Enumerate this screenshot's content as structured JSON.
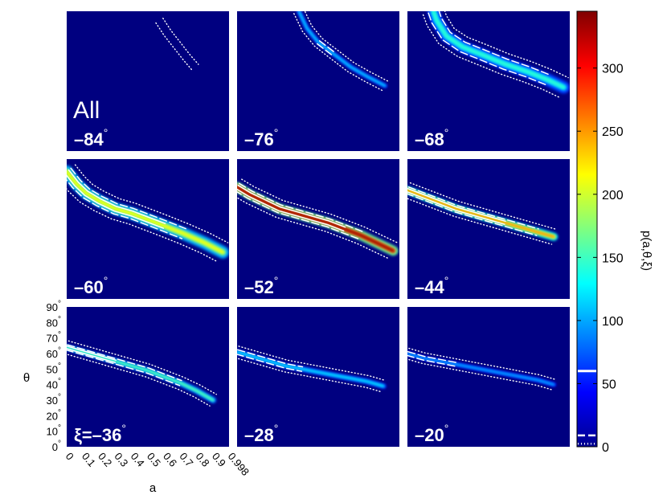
{
  "chart_data": {
    "type": "heatmap",
    "title": "",
    "overlay_label": "All",
    "xlabel": "a",
    "ylabel": "θ",
    "colorbar_label": "p(a,θ,ξ)",
    "x_ticks": [
      "0",
      "0.1",
      "0.2",
      "0.3",
      "0.4",
      "0.5",
      "0.6",
      "0.7",
      "0.8",
      "0.9",
      "0.998"
    ],
    "xlim": [
      0,
      0.998
    ],
    "y_ticks": [
      "0°",
      "10°",
      "20°",
      "30°",
      "40°",
      "50°",
      "60°",
      "70°",
      "80°",
      "90°"
    ],
    "ylim": [
      0,
      90
    ],
    "colorbar": {
      "ticks": [
        "0",
        "50",
        "100",
        "150",
        "200",
        "250",
        "300"
      ],
      "range": [
        0,
        345
      ],
      "contour_levels": [
        {
          "style": "dotted",
          "value": 0.5
        },
        {
          "style": "dashed",
          "value": 9
        },
        {
          "style": "solid",
          "value": 60
        }
      ]
    },
    "panels": [
      {
        "label": "–84°",
        "xi": -84,
        "peak": 0,
        "ridge": [
          [
            0.57,
            84
          ],
          [
            0.62,
            76
          ],
          [
            0.68,
            68
          ],
          [
            0.74,
            60
          ],
          [
            0.79,
            54
          ]
        ],
        "outer_width": 1.5,
        "dashed": [],
        "solid": []
      },
      {
        "label": "–76°",
        "xi": -76,
        "peak": 30,
        "ridge": [
          [
            0.38,
            90
          ],
          [
            0.43,
            79
          ],
          [
            0.5,
            70
          ],
          [
            0.6,
            62
          ],
          [
            0.7,
            54
          ],
          [
            0.8,
            48
          ],
          [
            0.91,
            42
          ]
        ],
        "outer_width": 2.5,
        "dashed": [
          0.46,
          0.62
        ],
        "solid": []
      },
      {
        "label": "–68°",
        "xi": -68,
        "peak": 60,
        "ridge": [
          [
            0.16,
            90
          ],
          [
            0.18,
            84
          ],
          [
            0.24,
            74
          ],
          [
            0.34,
            67
          ],
          [
            0.46,
            62
          ],
          [
            0.6,
            56
          ],
          [
            0.74,
            51
          ],
          [
            0.86,
            46
          ],
          [
            0.96,
            41
          ]
        ],
        "outer_width": 7,
        "dashed": [
          0.1,
          0.86
        ],
        "solid": []
      },
      {
        "label": "–60°",
        "xi": -60,
        "peak": 160,
        "ridge": [
          [
            0.0,
            82
          ],
          [
            0.06,
            74
          ],
          [
            0.12,
            68
          ],
          [
            0.2,
            63
          ],
          [
            0.3,
            58
          ],
          [
            0.4,
            55
          ],
          [
            0.5,
            51
          ],
          [
            0.6,
            47
          ],
          [
            0.72,
            42
          ],
          [
            0.85,
            36
          ],
          [
            0.96,
            30
          ]
        ],
        "outer_width": 7,
        "dashed": [
          0.0,
          0.74
        ],
        "solid": [
          0.0,
          0.64
        ]
      },
      {
        "label": "–52°",
        "xi": -52,
        "peak": 345,
        "ridge": [
          [
            0.0,
            72
          ],
          [
            0.08,
            67
          ],
          [
            0.16,
            63
          ],
          [
            0.26,
            58
          ],
          [
            0.36,
            55
          ],
          [
            0.46,
            52
          ],
          [
            0.56,
            49
          ],
          [
            0.66,
            45
          ],
          [
            0.76,
            41
          ],
          [
            0.86,
            36
          ],
          [
            0.96,
            31
          ]
        ],
        "outer_width": 5.5,
        "dashed": [
          0.0,
          0.82
        ],
        "solid": [
          0.0,
          0.66
        ]
      },
      {
        "label": "–44°",
        "xi": -44,
        "peak": 230,
        "ridge": [
          [
            0.0,
            70
          ],
          [
            0.1,
            66
          ],
          [
            0.2,
            62
          ],
          [
            0.3,
            58
          ],
          [
            0.4,
            55
          ],
          [
            0.5,
            52
          ],
          [
            0.6,
            49
          ],
          [
            0.7,
            46
          ],
          [
            0.8,
            43
          ],
          [
            0.9,
            40
          ]
        ],
        "outer_width": 4.5,
        "dashed": [
          0.0,
          0.84
        ],
        "solid": [
          0.0,
          0.6
        ]
      },
      {
        "label": "ξ=–36°",
        "xi": -36,
        "peak": 90,
        "ridge": [
          [
            0.0,
            64
          ],
          [
            0.1,
            61
          ],
          [
            0.2,
            58
          ],
          [
            0.3,
            55
          ],
          [
            0.4,
            52
          ],
          [
            0.5,
            49
          ],
          [
            0.6,
            45
          ],
          [
            0.7,
            41
          ],
          [
            0.8,
            36
          ],
          [
            0.9,
            30
          ]
        ],
        "outer_width": 3.5,
        "dashed": [
          0.0,
          0.7
        ],
        "solid": [
          0.0,
          0.36
        ]
      },
      {
        "label": "–28°",
        "xi": -28,
        "peak": 40,
        "ridge": [
          [
            0.0,
            61
          ],
          [
            0.1,
            58
          ],
          [
            0.2,
            55
          ],
          [
            0.3,
            52
          ],
          [
            0.4,
            50
          ],
          [
            0.5,
            48
          ],
          [
            0.6,
            46
          ],
          [
            0.7,
            44
          ],
          [
            0.8,
            42
          ],
          [
            0.9,
            39
          ]
        ],
        "outer_width": 3,
        "dashed": [
          0.0,
          0.48
        ],
        "solid": []
      },
      {
        "label": "–20°",
        "xi": -20,
        "peak": 12,
        "ridge": [
          [
            0.0,
            60
          ],
          [
            0.1,
            57
          ],
          [
            0.2,
            55
          ],
          [
            0.3,
            53
          ],
          [
            0.4,
            51
          ],
          [
            0.5,
            49
          ],
          [
            0.6,
            47
          ],
          [
            0.7,
            45
          ],
          [
            0.8,
            43
          ],
          [
            0.9,
            40
          ]
        ],
        "outer_width": 2.5,
        "dashed": [
          0.0,
          0.32
        ],
        "solid": []
      }
    ]
  }
}
